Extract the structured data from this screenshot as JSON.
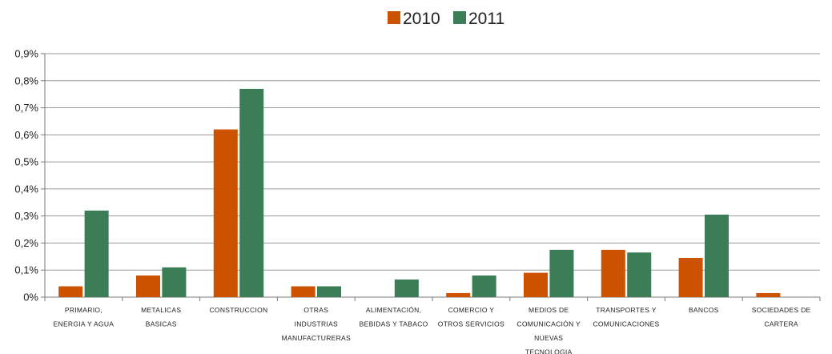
{
  "chart_data": {
    "type": "bar",
    "categories": [
      [
        "PRIMARIO,",
        "ENERGIA Y AGUA"
      ],
      [
        "METALICAS",
        "BASICAS"
      ],
      [
        "CONSTRUCCION"
      ],
      [
        "OTRAS",
        "INDUSTRIAS",
        "MANUFACTURERAS"
      ],
      [
        "ALIMENTACIÓN,",
        "BEBIDAS Y TABACO"
      ],
      [
        "COMERCIO Y",
        "OTROS SERVICIOS"
      ],
      [
        "MEDIOS DE",
        "COMUNICACIÓN Y",
        "NUEVAS",
        "TECNOLOGIA"
      ],
      [
        "TRANSPORTES Y",
        "COMUNICACIONES"
      ],
      [
        "BANCOS"
      ],
      [
        "SOCIEDADES DE",
        "CARTERA"
      ]
    ],
    "series": [
      {
        "name": "2010",
        "color": "#cc5200",
        "values": [
          0.04,
          0.08,
          0.62,
          0.04,
          0.0,
          0.015,
          0.09,
          0.175,
          0.145,
          0.015
        ]
      },
      {
        "name": "2011",
        "color": "#3b7d57",
        "values": [
          0.32,
          0.11,
          0.77,
          0.04,
          0.065,
          0.08,
          0.175,
          0.165,
          0.305,
          0.0
        ]
      }
    ],
    "ylim": [
      0,
      0.9
    ],
    "yticks": [
      "0%",
      "0,1%",
      "0,2%",
      "0,3%",
      "0,4%",
      "0,5%",
      "0,6%",
      "0,7%",
      "0,8%",
      "0,9%"
    ],
    "grid": true,
    "legend_position": "top-center"
  }
}
